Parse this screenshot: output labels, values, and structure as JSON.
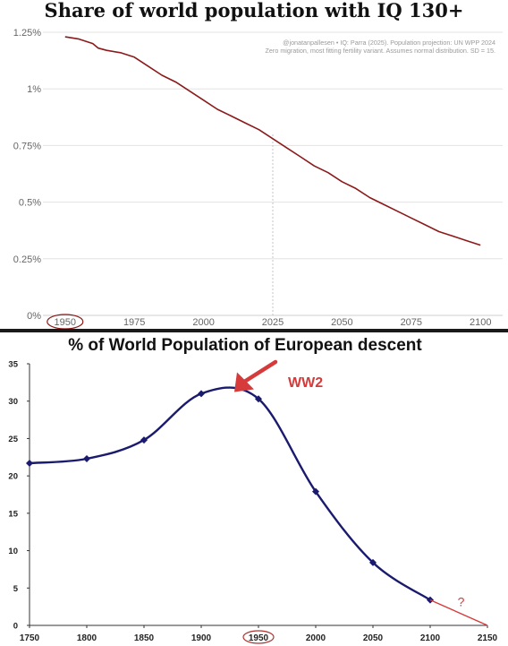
{
  "colors": {
    "line1": "#8b1a1a",
    "line2": "#1a1a6e",
    "accent": "#d63a3a",
    "grid": "#e3e3e3",
    "text": "#666666"
  },
  "chart_data": [
    {
      "type": "line",
      "title": "Share of world population with IQ 130+",
      "annotation": [
        "@jonatanpallesen • IQ: Parra (2025). Population projection: UN WPP 2024",
        "Zero migration, most fitting fertility variant. Assumes normal distribution. SD = 15."
      ],
      "x_ticks": [
        1950,
        1975,
        2000,
        2025,
        2050,
        2075,
        2100
      ],
      "x_tick_labels": [
        "1950",
        "1975",
        "2000",
        "2025",
        "2050",
        "2075",
        "2100"
      ],
      "y_ticks": [
        0,
        0.25,
        0.5,
        0.75,
        1,
        1.25
      ],
      "y_tick_labels": [
        "0%",
        "0.25%",
        "0.5%",
        "0.75%",
        "1%",
        "1.25%"
      ],
      "xlim": [
        1942,
        2108
      ],
      "ylim": [
        0,
        1.25
      ],
      "highlight_x": 1950,
      "reference_line_x": 2025,
      "grid": true,
      "series": [
        {
          "x": [
            1950,
            1955,
            1960,
            1962,
            1965,
            1970,
            1975,
            1980,
            1985,
            1990,
            1995,
            2000,
            2005,
            2010,
            2015,
            2020,
            2025,
            2030,
            2035,
            2040,
            2045,
            2050,
            2055,
            2060,
            2065,
            2070,
            2075,
            2080,
            2085,
            2090,
            2095,
            2100
          ],
          "y": [
            1.23,
            1.22,
            1.2,
            1.18,
            1.17,
            1.16,
            1.14,
            1.1,
            1.06,
            1.03,
            0.99,
            0.95,
            0.91,
            0.88,
            0.85,
            0.82,
            0.78,
            0.74,
            0.7,
            0.66,
            0.63,
            0.59,
            0.56,
            0.52,
            0.49,
            0.46,
            0.43,
            0.4,
            0.37,
            0.35,
            0.33,
            0.31
          ]
        }
      ]
    },
    {
      "type": "line",
      "title": "% of World Population of European descent",
      "x_ticks": [
        1750,
        1800,
        1850,
        1900,
        1950,
        2000,
        2050,
        2100,
        2150
      ],
      "x_tick_labels": [
        "1750",
        "1800",
        "1850",
        "1900",
        "1950",
        "2000",
        "2050",
        "2100",
        "2150"
      ],
      "y_ticks": [
        0,
        5,
        10,
        15,
        20,
        25,
        30,
        35
      ],
      "y_tick_labels": [
        "0",
        "5",
        "10",
        "15",
        "20",
        "25",
        "30",
        "35"
      ],
      "xlim": [
        1750,
        2150
      ],
      "ylim": [
        0,
        35
      ],
      "highlight_x": 1950,
      "grid": false,
      "series": [
        {
          "x": [
            1750,
            1800,
            1850,
            1900,
            1950,
            2000,
            2050,
            2100
          ],
          "y": [
            21.7,
            22.3,
            24.8,
            31.0,
            30.3,
            17.9,
            8.4,
            3.4
          ],
          "markers": true
        }
      ],
      "extension": {
        "x": [
          2100,
          2150
        ],
        "y": [
          3.4,
          0
        ],
        "label": "?"
      },
      "callout": {
        "label": "WW2",
        "target_x": 1925,
        "target_y": 31.7
      }
    }
  ]
}
